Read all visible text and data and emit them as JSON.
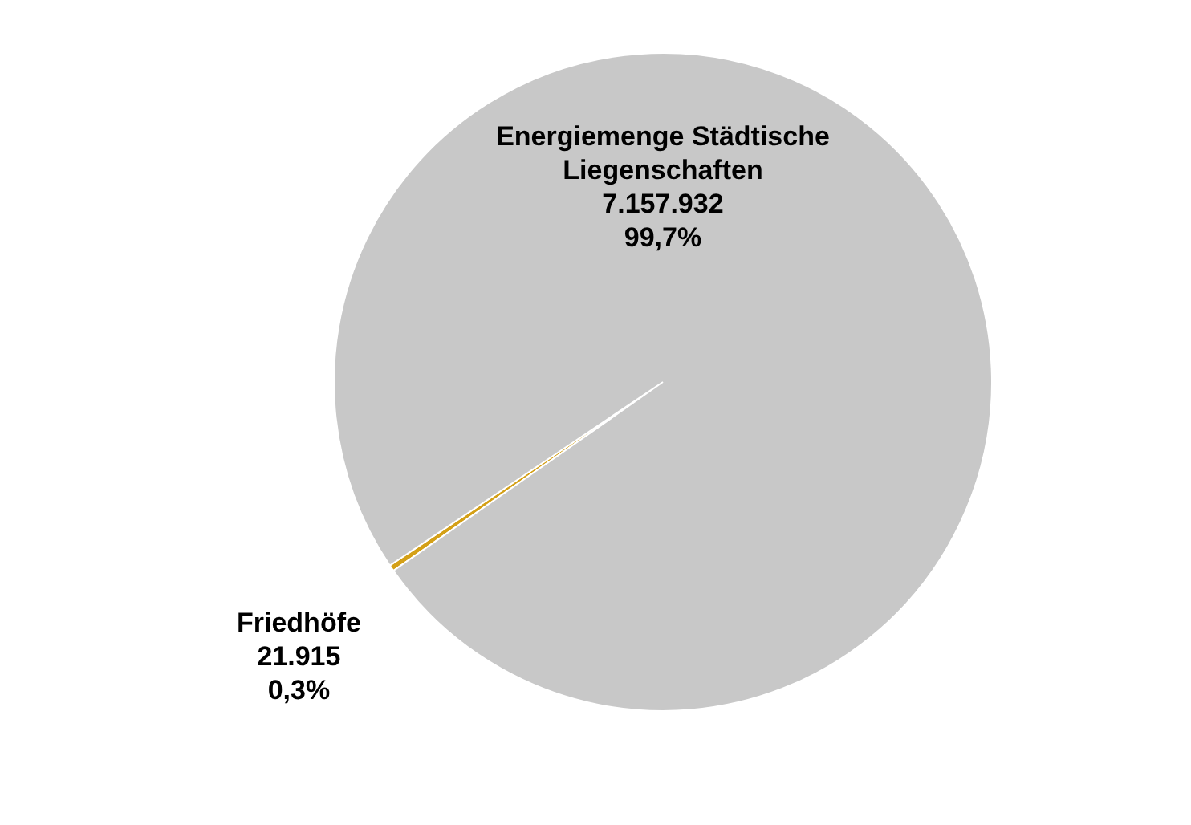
{
  "chart_data": {
    "type": "pie",
    "categories": [
      "Friedhöfe",
      "Energiemenge Städtische Liegenschaften"
    ],
    "values": [
      21915,
      7157932
    ],
    "colors": [
      "#d4a017",
      "#c8c8c8"
    ],
    "value_labels": [
      "21.915\n0,3%",
      "7.157.932\n99,7%"
    ]
  }
}
